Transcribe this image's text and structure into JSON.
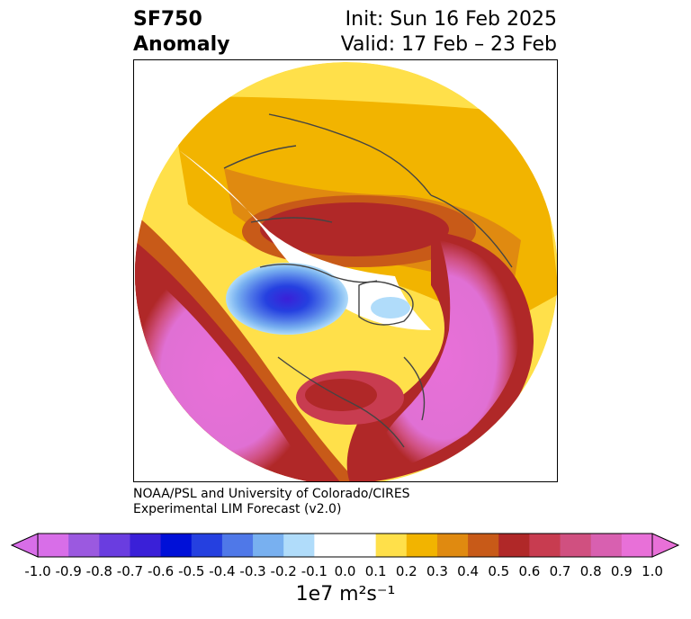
{
  "title": {
    "variable": "SF750",
    "subtitle": "Anomaly",
    "init": "Init: Sun 16 Feb 2025",
    "valid": "Valid: 17 Feb – 23 Feb"
  },
  "credit": {
    "line1": "NOAA/PSL and University of Colorado/CIRES",
    "line2": "Experimental LIM Forecast (v2.0)"
  },
  "colorbar": {
    "ticks": [
      "-1.0",
      "-0.9",
      "-0.8",
      "-0.7",
      "-0.6",
      "-0.5",
      "-0.4",
      "-0.3",
      "-0.2",
      "-0.1",
      "0.0",
      "0.1",
      "0.2",
      "0.3",
      "0.4",
      "0.5",
      "0.6",
      "0.7",
      "0.8",
      "0.9",
      "1.0"
    ],
    "colors": [
      "#9b59e0",
      "#6a3de0",
      "#3a20d8",
      "#0010d8",
      "#2540e0",
      "#4f78e8",
      "#78b0f0",
      "#b0dcfa",
      "#ffffff",
      "#ffe04a",
      "#f2b400",
      "#e08a10",
      "#c85a18",
      "#b02828",
      "#c83c50",
      "#d05080",
      "#d860b0"
    ],
    "low_extend_color": "#d86ee8",
    "high_extend_color": "#e870d8",
    "units": "1e7 m²s⁻¹"
  },
  "map": {
    "projection": "polar-stereographic-north",
    "field": "750 hPa streamfunction anomaly"
  }
}
